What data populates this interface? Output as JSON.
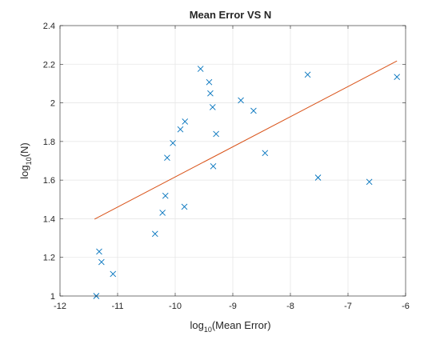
{
  "chart_data": {
    "type": "scatter",
    "title": "Mean Error VS N",
    "xlabel": {
      "prefix": "log",
      "sub": "10",
      "suffix": "(Mean Error)"
    },
    "ylabel": {
      "prefix": "log",
      "sub": "10",
      "suffix": "(N)"
    },
    "xlim": [
      -12,
      -6
    ],
    "ylim": [
      1,
      2.4
    ],
    "xticks": [
      -12,
      -11,
      -10,
      -9,
      -8,
      -7,
      -6
    ],
    "yticks": [
      1,
      1.2,
      1.4,
      1.6,
      1.8,
      2,
      2.2,
      2.4
    ],
    "xtick_labels": [
      "-12",
      "-11",
      "-10",
      "-9",
      "-8",
      "-7",
      "-6"
    ],
    "ytick_labels": [
      "1",
      "1.2",
      "1.4",
      "1.6",
      "1.8",
      "2",
      "2.2",
      "2.4"
    ],
    "grid": true,
    "marker": "x",
    "points": [
      {
        "x": -11.37,
        "y": 1.0
      },
      {
        "x": -11.32,
        "y": 1.23
      },
      {
        "x": -11.28,
        "y": 1.176
      },
      {
        "x": -11.08,
        "y": 1.114
      },
      {
        "x": -10.35,
        "y": 1.322
      },
      {
        "x": -10.22,
        "y": 1.431
      },
      {
        "x": -10.17,
        "y": 1.519
      },
      {
        "x": -10.14,
        "y": 1.716
      },
      {
        "x": -10.04,
        "y": 1.792
      },
      {
        "x": -9.91,
        "y": 1.863
      },
      {
        "x": -9.83,
        "y": 1.903
      },
      {
        "x": -9.84,
        "y": 1.462
      },
      {
        "x": -9.56,
        "y": 2.176
      },
      {
        "x": -9.41,
        "y": 2.107
      },
      {
        "x": -9.39,
        "y": 2.049
      },
      {
        "x": -9.35,
        "y": 1.978
      },
      {
        "x": -9.34,
        "y": 1.672
      },
      {
        "x": -9.29,
        "y": 1.839
      },
      {
        "x": -8.86,
        "y": 2.013
      },
      {
        "x": -8.64,
        "y": 1.959
      },
      {
        "x": -8.44,
        "y": 1.74
      },
      {
        "x": -7.7,
        "y": 2.146
      },
      {
        "x": -7.52,
        "y": 1.613
      },
      {
        "x": -6.63,
        "y": 1.591
      },
      {
        "x": -6.15,
        "y": 2.134
      }
    ],
    "fit_line": {
      "x": [
        -11.4,
        -6.15
      ],
      "y": [
        1.398,
        2.217
      ]
    },
    "colors": {
      "marker": "#0072BD",
      "fit_line": "#D95319",
      "grid": "#E6E6E6",
      "axes": "#262626",
      "background": "#FFFFFF"
    }
  }
}
